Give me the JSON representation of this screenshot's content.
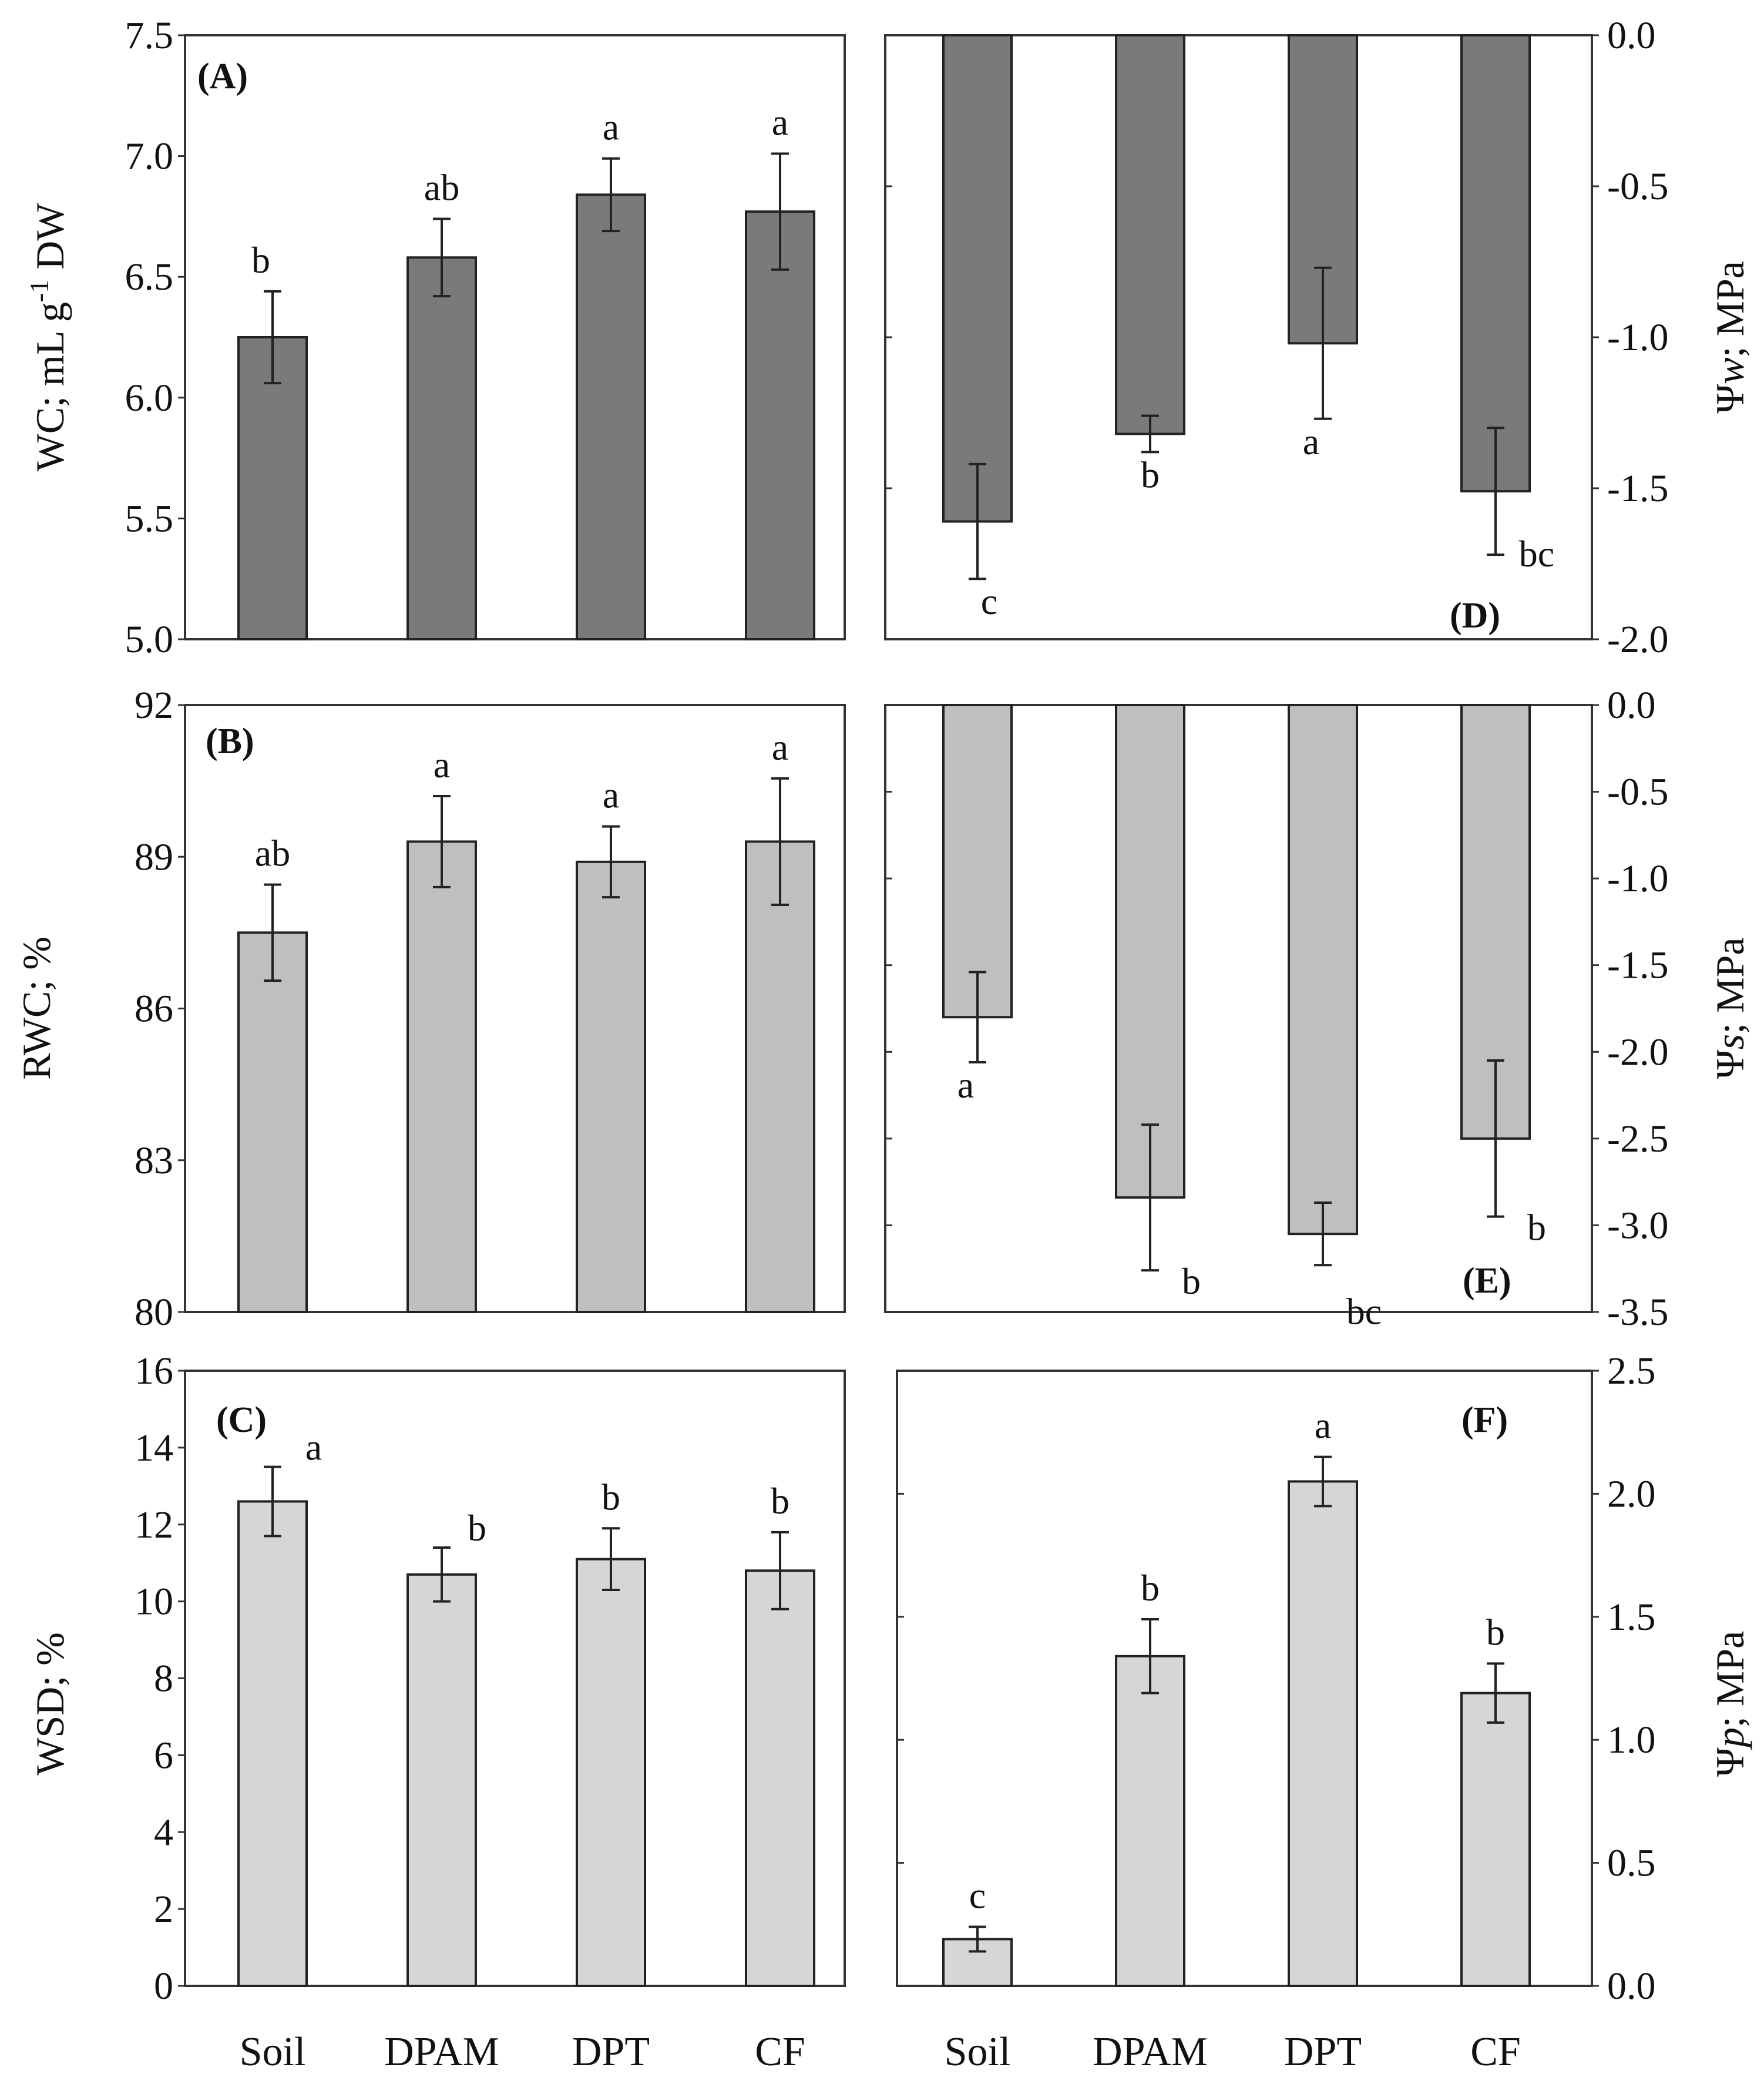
{
  "figure": {
    "x_categories": [
      "Soil",
      "DPAM",
      "DPT",
      "CF"
    ]
  },
  "colors": {
    "dark_bar": "#7a7a7a",
    "mid_bar": "#bfbfbf",
    "light_bar": "#d6d6d6",
    "axis": "#333333"
  },
  "chart_data": [
    {
      "id": "A",
      "type": "bar",
      "panel_label": "(A)",
      "side": "left",
      "ylabel": "WC; mL g-1 DW",
      "ylim": [
        5.0,
        7.5
      ],
      "ticks": [
        5.0,
        5.5,
        6.0,
        6.5,
        7.0,
        7.5
      ],
      "tick_labels": [
        "5.0",
        "5.5",
        "6.0",
        "6.5",
        "7.0",
        "7.5"
      ],
      "categories": [
        "Soil",
        "DPAM",
        "DPT",
        "CF"
      ],
      "values": [
        6.25,
        6.58,
        6.84,
        6.77
      ],
      "errors": [
        0.19,
        0.16,
        0.15,
        0.24
      ],
      "significance": [
        "b",
        "ab",
        "a",
        "a"
      ],
      "color": "dark"
    },
    {
      "id": "B",
      "type": "bar",
      "panel_label": "(B)",
      "side": "left",
      "ylabel": "RWC; %",
      "ylim": [
        80,
        92
      ],
      "ticks": [
        80,
        83,
        86,
        89,
        92
      ],
      "tick_labels": [
        "80",
        "83",
        "86",
        "89",
        "92"
      ],
      "categories": [
        "Soil",
        "DPAM",
        "DPT",
        "CF"
      ],
      "values": [
        87.5,
        89.3,
        88.9,
        89.3
      ],
      "errors": [
        0.95,
        0.9,
        0.7,
        1.25
      ],
      "significance": [
        "ab",
        "a",
        "a",
        "a"
      ],
      "color": "mid"
    },
    {
      "id": "C",
      "type": "bar",
      "panel_label": "(C)",
      "side": "left",
      "ylabel": "WSD; %",
      "ylim": [
        0,
        16
      ],
      "ticks": [
        0,
        2,
        4,
        6,
        8,
        10,
        12,
        14,
        16
      ],
      "tick_labels": [
        "0",
        "2",
        "4",
        "6",
        "8",
        "10",
        "12",
        "14",
        "16"
      ],
      "categories": [
        "Soil",
        "DPAM",
        "DPT",
        "CF"
      ],
      "values": [
        12.6,
        10.7,
        11.1,
        10.8
      ],
      "errors": [
        0.9,
        0.7,
        0.8,
        1.0
      ],
      "significance": [
        "a",
        "b",
        "b",
        "b"
      ],
      "color": "light"
    },
    {
      "id": "D",
      "type": "bar",
      "panel_label": "(D)",
      "side": "right",
      "ylabel": "Ψw; MPa",
      "ylim": [
        -2.0,
        0.0
      ],
      "ticks": [
        -2.0,
        -1.5,
        -1.0,
        -0.5,
        0.0
      ],
      "tick_labels": [
        "-2.0",
        "-1.5",
        "-1.0",
        "-0.5",
        "0.0"
      ],
      "categories": [
        "Soil",
        "DPAM",
        "DPT",
        "CF"
      ],
      "values": [
        -1.61,
        -1.32,
        -1.02,
        -1.51
      ],
      "errors": [
        0.19,
        0.06,
        0.25,
        0.21
      ],
      "significance": [
        "c",
        "b",
        "a",
        "bc"
      ],
      "color": "dark"
    },
    {
      "id": "E",
      "type": "bar",
      "panel_label": "(E)",
      "side": "right",
      "ylabel": "Ψs; MPa",
      "ylim": [
        -3.5,
        0.0
      ],
      "ticks": [
        -3.5,
        -3.0,
        -2.5,
        -2.0,
        -1.5,
        -1.0,
        -0.5,
        0.0
      ],
      "tick_labels": [
        "-3.5",
        "-3.0",
        "-2.5",
        "-2.0",
        "-1.5",
        "-1.0",
        "-0.5",
        "0.0"
      ],
      "categories": [
        "Soil",
        "DPAM",
        "DPT",
        "CF"
      ],
      "values": [
        -1.8,
        -2.84,
        -3.05,
        -2.5
      ],
      "errors": [
        0.26,
        0.42,
        0.18,
        0.45
      ],
      "significance": [
        "a",
        "b",
        "bc",
        "b"
      ],
      "color": "mid"
    },
    {
      "id": "F",
      "type": "bar",
      "panel_label": "(F)",
      "side": "right",
      "ylabel": "Ψp; MPa",
      "ylim": [
        0.0,
        2.5
      ],
      "ticks": [
        0.0,
        0.5,
        1.0,
        1.5,
        2.0,
        2.5
      ],
      "tick_labels": [
        "0.0",
        "0.5",
        "1.0",
        "1.5",
        "2.0",
        "2.5"
      ],
      "categories": [
        "Soil",
        "DPAM",
        "DPT",
        "CF"
      ],
      "values": [
        0.19,
        1.34,
        2.05,
        1.19
      ],
      "errors": [
        0.05,
        0.15,
        0.1,
        0.12
      ],
      "significance": [
        "c",
        "b",
        "a",
        "b"
      ],
      "color": "light"
    }
  ]
}
